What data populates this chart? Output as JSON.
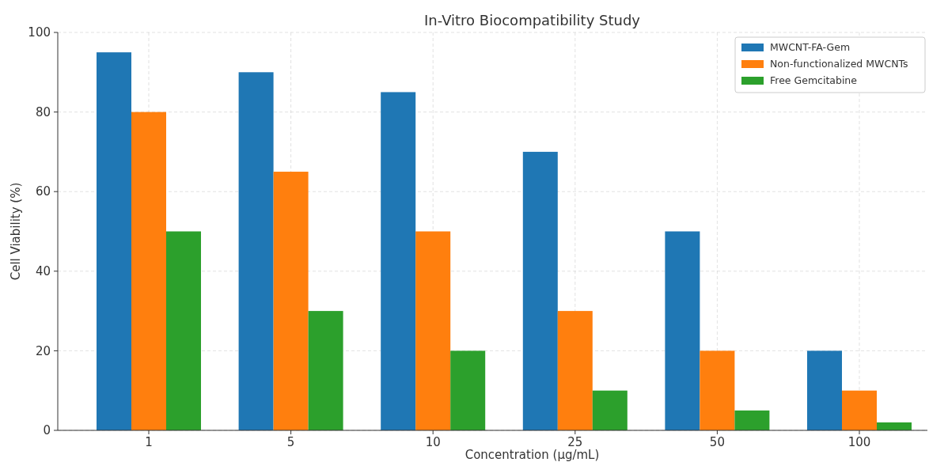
{
  "chart_data": {
    "type": "bar",
    "title": "In-Vitro Biocompatibility Study",
    "xlabel": "Concentration (µg/mL)",
    "ylabel": "Cell Viability (%)",
    "categories": [
      "1",
      "5",
      "10",
      "25",
      "50",
      "100"
    ],
    "series": [
      {
        "name": "MWCNT-FA-Gem",
        "color": "#1f77b4",
        "values": [
          95,
          90,
          85,
          70,
          50,
          20
        ]
      },
      {
        "name": "Non-functionalized MWCNTs",
        "color": "#ff7f0e",
        "values": [
          80,
          65,
          50,
          30,
          20,
          10
        ]
      },
      {
        "name": "Free Gemcitabine",
        "color": "#2ca02c",
        "values": [
          50,
          30,
          20,
          10,
          5,
          2
        ]
      }
    ],
    "ylim": [
      0,
      100
    ],
    "yticks": [
      0,
      20,
      40,
      60,
      80,
      100
    ],
    "grid": true,
    "legend": "top right"
  }
}
